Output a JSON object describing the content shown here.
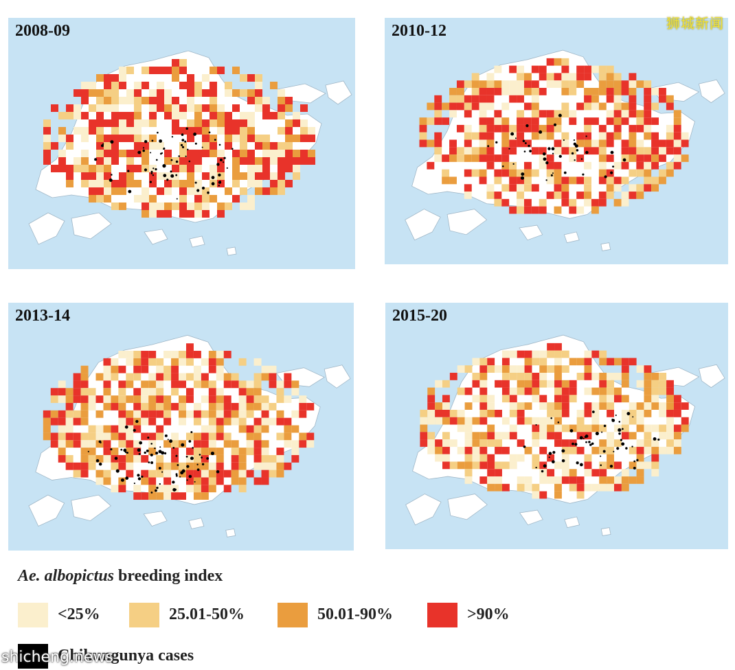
{
  "panels": [
    {
      "label": "2008-09"
    },
    {
      "label": "2010-12"
    },
    {
      "label": "2013-14"
    },
    {
      "label": "2015-20"
    }
  ],
  "legend": {
    "title_italic": "Ae. albopictus",
    "title_rest": "breeding index",
    "items": [
      {
        "label": "<25%",
        "color": "#fbefcd"
      },
      {
        "label": "25.01-50%",
        "color": "#f5cf84"
      },
      {
        "label": "50.01-90%",
        "color": "#ea9d3e"
      },
      {
        "label": ">90%",
        "color": "#e8332a"
      }
    ],
    "cases_label": "Chikungunya cases",
    "cases_color": "#000000"
  },
  "colors": {
    "sea": "#c7e3f4",
    "land": "#ffffff"
  },
  "watermarks": {
    "top_right": "狮城新闻",
    "bottom_left": "shicheng.news"
  }
}
